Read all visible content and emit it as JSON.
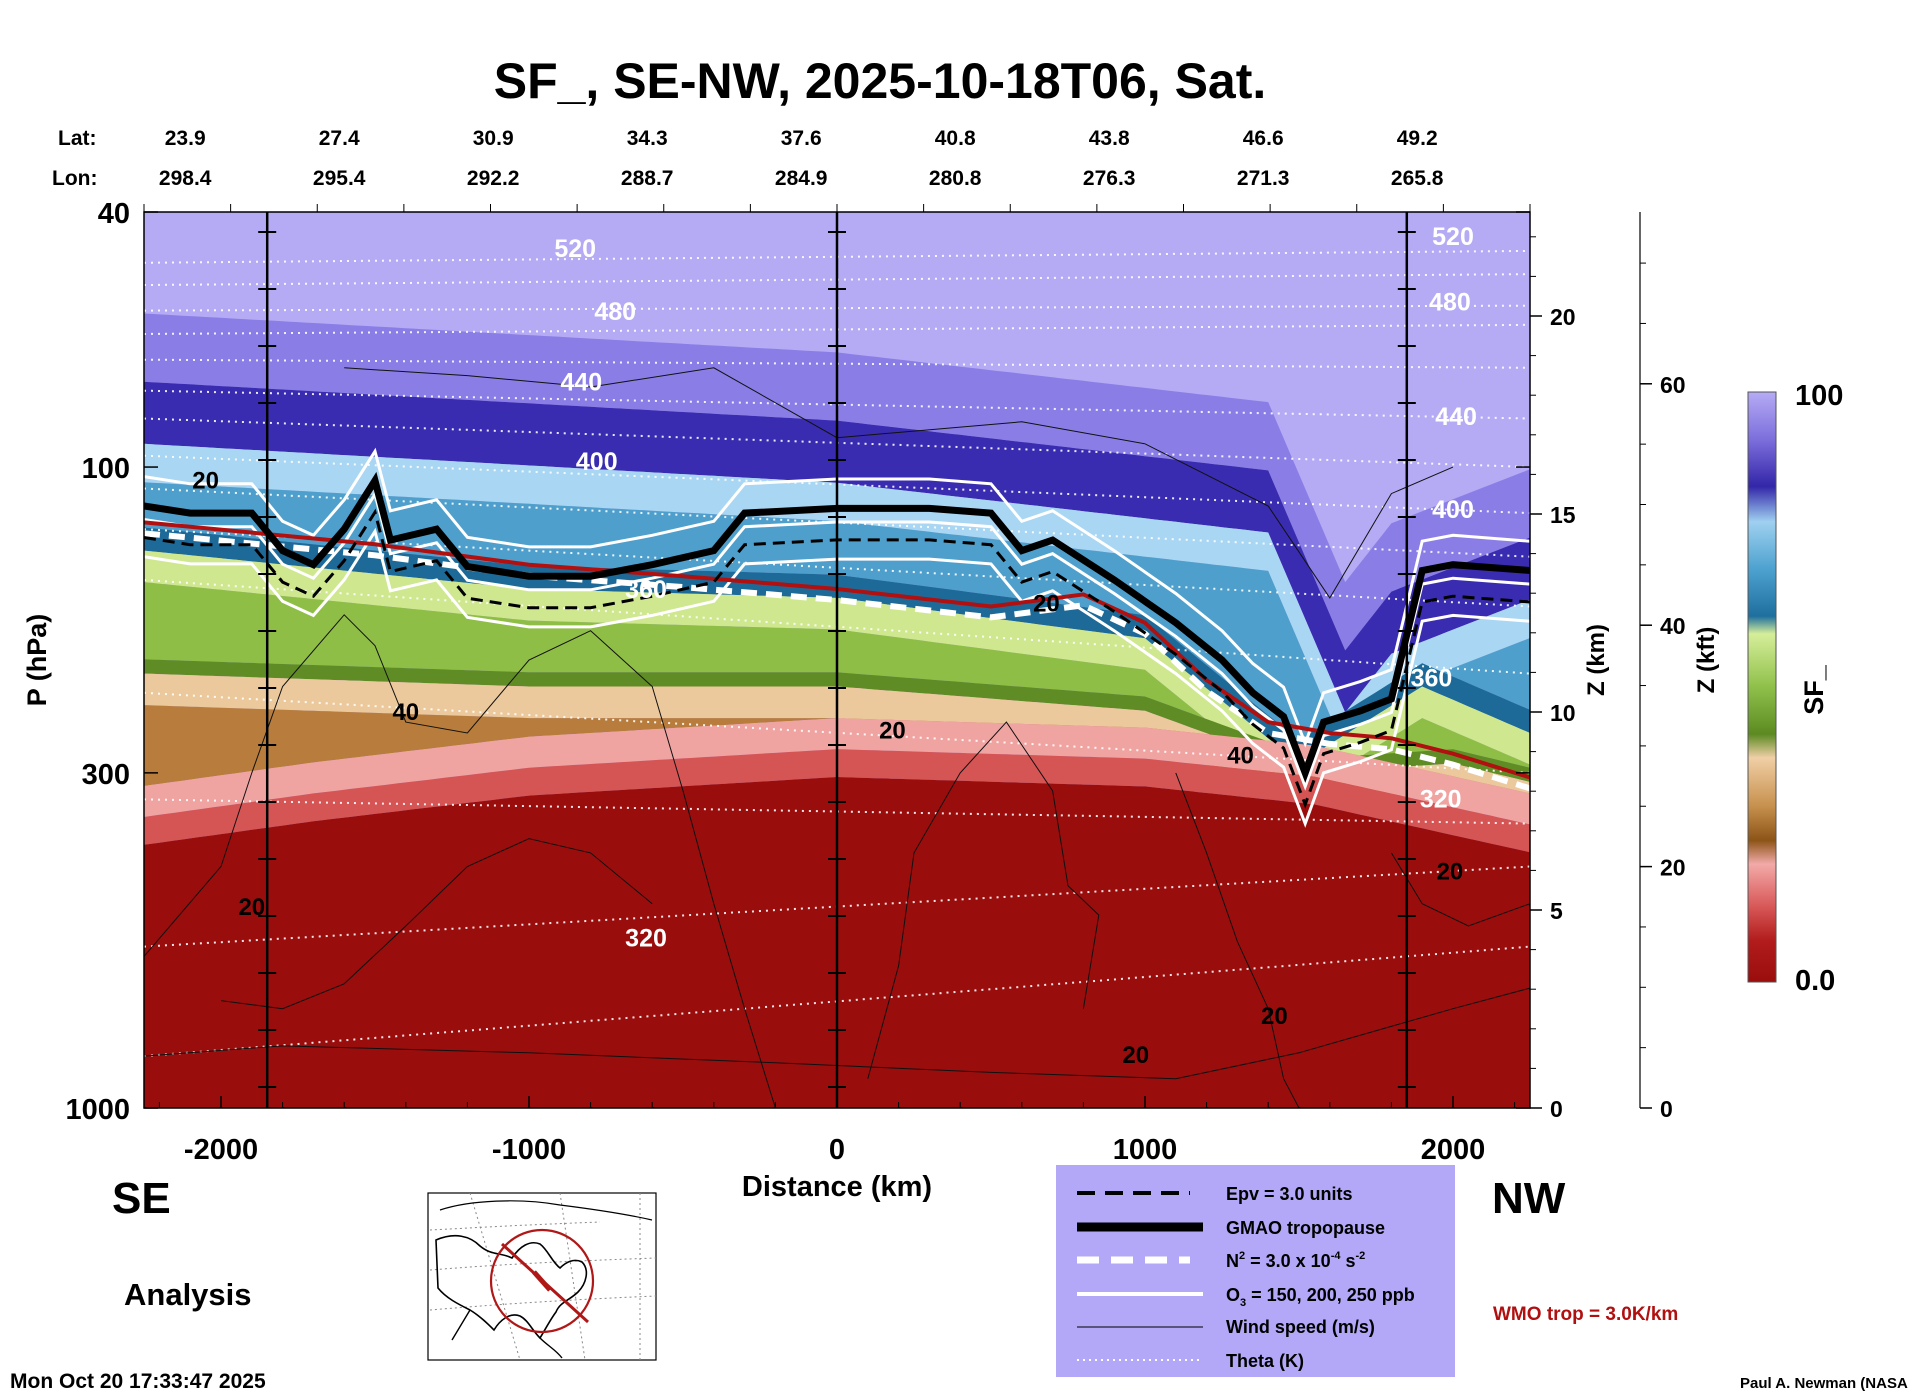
{
  "title": "SF_, SE-NW, 2025-10-18T06, Sat.",
  "lat_label": "Lat:",
  "lon_label": "Lon:",
  "lat_values": [
    "23.9",
    "27.4",
    "30.9",
    "34.3",
    "37.6",
    "40.8",
    "43.8",
    "46.6",
    "49.2"
  ],
  "lon_values": [
    "298.4",
    "295.4",
    "292.2",
    "288.7",
    "284.9",
    "280.8",
    "276.3",
    "271.3",
    "265.8"
  ],
  "left_label": "SE",
  "right_label": "NW",
  "analysis_label": "Analysis",
  "timestamp": "Mon Oct 20 17:33:47 2025",
  "credit": "Paul A. Newman (NASA",
  "wmo_note": "WMO trop = 3.0K/km",
  "legend": {
    "epv": "Epv = 3.0 units",
    "gmao": "GMAO tropopause",
    "n2_prefix": "N",
    "n2_sup": "2",
    "n2_mid": " = 3.0 x 10",
    "n2_exp": "-4",
    "n2_unit": " s",
    "n2_unit_exp": "-2",
    "o3_prefix": "O",
    "o3_sub": "3",
    "o3_rest": " = 150, 200, 250 ppb",
    "wind": "Wind speed (m/s)",
    "theta": "Theta (K)"
  },
  "colors": {
    "legend_bg": "#b2a8f7",
    "wmo": "#b01010",
    "high": "#b5abf5",
    "low": "#9a0d0d"
  },
  "chart_data": {
    "type": "heatmap",
    "variable": "SF_",
    "xlabel": "Distance (km)",
    "ylabel": "P (hPa)",
    "z_km_label": "Z (km)",
    "z_kft_label": "Z (kft)",
    "colorbar_label": "SF_",
    "colorbar_range": [
      0.0,
      100
    ],
    "colorbar_tick_labels": [
      "100",
      "0.0"
    ],
    "x_range": [
      -2250,
      2250
    ],
    "x_ticks": [
      -2000,
      -1000,
      0,
      1000,
      2000
    ],
    "x_tick_labels": [
      "-2000",
      "-1000",
      "0",
      "1000",
      "2000"
    ],
    "y_range_hPa": [
      1000,
      40
    ],
    "y_scale": "log",
    "y_ticks": [
      40,
      100,
      300,
      1000
    ],
    "z_km_ticks": [
      0,
      5,
      10,
      15,
      20
    ],
    "z_kft_ticks": [
      0,
      20,
      40,
      60
    ],
    "theta_labels": [
      {
        "value": "520",
        "x": -850,
        "p": 47
      },
      {
        "value": "480",
        "x": -720,
        "p": 59
      },
      {
        "value": "440",
        "x": -830,
        "p": 76
      },
      {
        "value": "400",
        "x": -780,
        "p": 101
      },
      {
        "value": "360",
        "x": -620,
        "p": 160
      },
      {
        "value": "320",
        "x": -620,
        "p": 560
      },
      {
        "value": "520",
        "x": 2000,
        "p": 45
      },
      {
        "value": "480",
        "x": 1990,
        "p": 57
      },
      {
        "value": "440",
        "x": 2010,
        "p": 86
      },
      {
        "value": "400",
        "x": 2000,
        "p": 120
      },
      {
        "value": "360",
        "x": 1930,
        "p": 220
      },
      {
        "value": "320",
        "x": 1960,
        "p": 340
      }
    ],
    "wind_labels": [
      {
        "value": "20",
        "x": -2050,
        "p": 108
      },
      {
        "value": "40",
        "x": -1400,
        "p": 248
      },
      {
        "value": "20",
        "x": -1900,
        "p": 500
      },
      {
        "value": "20",
        "x": 180,
        "p": 265
      },
      {
        "value": "20",
        "x": 680,
        "p": 168
      },
      {
        "value": "40",
        "x": 1310,
        "p": 290
      },
      {
        "value": "20",
        "x": 1990,
        "p": 440
      },
      {
        "value": "20",
        "x": 1420,
        "p": 740
      },
      {
        "value": "20",
        "x": 970,
        "p": 850
      }
    ],
    "tropopause_gmao_hPa": [
      {
        "x": -2250,
        "p": 115
      },
      {
        "x": -2100,
        "p": 118
      },
      {
        "x": -1900,
        "p": 118
      },
      {
        "x": -1800,
        "p": 135
      },
      {
        "x": -1700,
        "p": 142
      },
      {
        "x": -1600,
        "p": 125
      },
      {
        "x": -1500,
        "p": 105
      },
      {
        "x": -1450,
        "p": 130
      },
      {
        "x": -1300,
        "p": 125
      },
      {
        "x": -1200,
        "p": 143
      },
      {
        "x": -1000,
        "p": 148
      },
      {
        "x": -800,
        "p": 148
      },
      {
        "x": -600,
        "p": 142
      },
      {
        "x": -400,
        "p": 135
      },
      {
        "x": -300,
        "p": 118
      },
      {
        "x": 0,
        "p": 116
      },
      {
        "x": 300,
        "p": 116
      },
      {
        "x": 500,
        "p": 118
      },
      {
        "x": 600,
        "p": 135
      },
      {
        "x": 700,
        "p": 130
      },
      {
        "x": 900,
        "p": 150
      },
      {
        "x": 1100,
        "p": 175
      },
      {
        "x": 1250,
        "p": 200
      },
      {
        "x": 1350,
        "p": 225
      },
      {
        "x": 1450,
        "p": 245
      },
      {
        "x": 1520,
        "p": 300
      },
      {
        "x": 1580,
        "p": 250
      },
      {
        "x": 1700,
        "p": 240
      },
      {
        "x": 1800,
        "p": 230
      },
      {
        "x": 1900,
        "p": 145
      },
      {
        "x": 2000,
        "p": 142
      },
      {
        "x": 2250,
        "p": 145
      }
    ],
    "wmo_tropopause_hPa": [
      {
        "x": -2250,
        "p": 122
      },
      {
        "x": -1500,
        "p": 132
      },
      {
        "x": -1000,
        "p": 142
      },
      {
        "x": -500,
        "p": 148
      },
      {
        "x": 0,
        "p": 155
      },
      {
        "x": 500,
        "p": 165
      },
      {
        "x": 800,
        "p": 158
      },
      {
        "x": 1000,
        "p": 175
      },
      {
        "x": 1200,
        "p": 215
      },
      {
        "x": 1400,
        "p": 250
      },
      {
        "x": 1600,
        "p": 260
      },
      {
        "x": 1800,
        "p": 265
      },
      {
        "x": 2000,
        "p": 280
      },
      {
        "x": 2250,
        "p": 305
      }
    ],
    "sf_bands_hPa": {
      "high_top": 40,
      "deep_blue": [
        {
          "x": -2250,
          "p": 80
        },
        {
          "x": 0,
          "p": 92
        },
        {
          "x": 1400,
          "p": 110
        },
        {
          "x": 1650,
          "p": 210
        },
        {
          "x": 1800,
          "p": 170
        },
        {
          "x": 2250,
          "p": 140
        }
      ],
      "green": [
        {
          "x": -2250,
          "p": 135
        },
        {
          "x": -1000,
          "p": 155
        },
        {
          "x": 0,
          "p": 160
        },
        {
          "x": 1000,
          "p": 185
        },
        {
          "x": 1500,
          "p": 290
        },
        {
          "x": 1900,
          "p": 220
        },
        {
          "x": 2250,
          "p": 260
        }
      ],
      "tan": [
        {
          "x": -2250,
          "p": 210
        },
        {
          "x": -1000,
          "p": 220
        },
        {
          "x": 0,
          "p": 220
        },
        {
          "x": 1000,
          "p": 240
        },
        {
          "x": 1550,
          "p": 300
        },
        {
          "x": 2000,
          "p": 290
        },
        {
          "x": 2250,
          "p": 310
        }
      ],
      "red": [
        {
          "x": -2250,
          "p": 370
        },
        {
          "x": -1700,
          "p": 340
        },
        {
          "x": -1000,
          "p": 310
        },
        {
          "x": 0,
          "p": 290
        },
        {
          "x": 1000,
          "p": 300
        },
        {
          "x": 1550,
          "p": 320
        },
        {
          "x": 2250,
          "p": 380
        }
      ]
    }
  }
}
